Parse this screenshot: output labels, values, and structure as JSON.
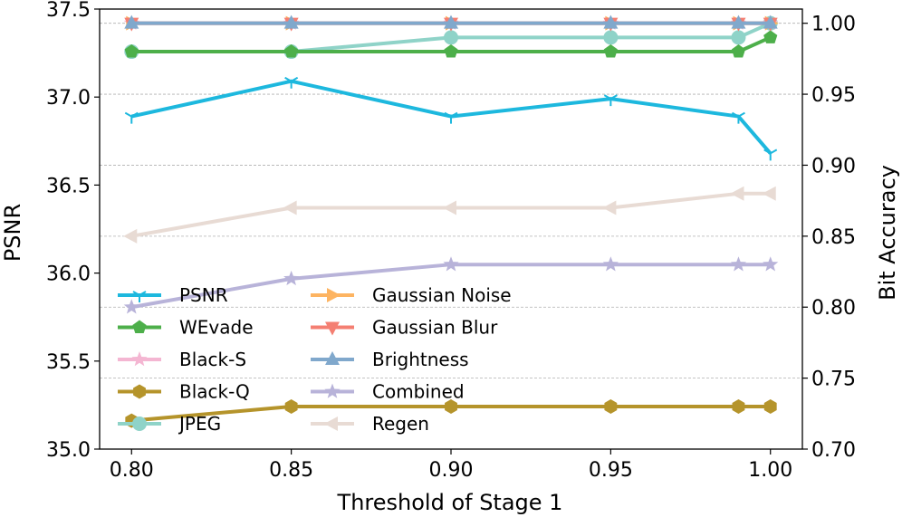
{
  "chart_data": {
    "type": "line",
    "xlabel": "Threshold of Stage 1",
    "ylabel_left": "PSNR",
    "ylabel_right": "Bit Accuracy",
    "x": [
      0.8,
      0.85,
      0.9,
      0.95,
      0.99,
      1.0
    ],
    "xticks": [
      "0.80",
      "0.85",
      "0.90",
      "0.95",
      "1.00"
    ],
    "xlim": [
      0.79,
      1.01
    ],
    "ylim_left": [
      35.0,
      37.5
    ],
    "yticks_left": [
      "35.0",
      "35.5",
      "36.0",
      "36.5",
      "37.0",
      "37.5"
    ],
    "ylim_right": [
      0.7,
      1.01
    ],
    "yticks_right": [
      "0.70",
      "0.75",
      "0.80",
      "0.85",
      "0.90",
      "0.95",
      "1.00"
    ],
    "grid": "horizontal dashed at right-axis ticks",
    "legend_position": "lower-left",
    "series": [
      {
        "name": "PSNR",
        "axis": "left",
        "color": "#1db8de",
        "marker": "tri_down",
        "values": [
          36.89,
          37.09,
          36.89,
          36.99,
          36.89,
          36.68
        ]
      },
      {
        "name": "WEvade",
        "axis": "right",
        "color": "#4daf4a",
        "marker": "pentagon",
        "values": [
          0.98,
          0.98,
          0.98,
          0.98,
          0.98,
          0.99
        ]
      },
      {
        "name": "Black-S",
        "axis": "right",
        "color": "#f4b6d2",
        "marker": "star",
        "values": [
          1.0,
          1.0,
          1.0,
          1.0,
          1.0,
          1.0
        ]
      },
      {
        "name": "Black-Q",
        "axis": "right",
        "color": "#b5942b",
        "marker": "hexagon",
        "values": [
          0.72,
          0.73,
          0.73,
          0.73,
          0.73,
          0.73
        ]
      },
      {
        "name": "JPEG",
        "axis": "right",
        "color": "#8fd3c8",
        "marker": "circle",
        "values": [
          0.98,
          0.98,
          0.99,
          0.99,
          0.99,
          1.0
        ]
      },
      {
        "name": "Gaussian Noise",
        "axis": "right",
        "color": "#fdb462",
        "marker": "tri_right",
        "values": [
          1.0,
          1.0,
          1.0,
          1.0,
          1.0,
          1.0
        ]
      },
      {
        "name": "Gaussian Blur",
        "axis": "right",
        "color": "#f47f72",
        "marker": "tri_down_filled",
        "values": [
          1.0,
          1.0,
          1.0,
          1.0,
          1.0,
          1.0
        ]
      },
      {
        "name": "Brightness",
        "axis": "right",
        "color": "#80a8cc",
        "marker": "tri_up_filled",
        "values": [
          1.0,
          1.0,
          1.0,
          1.0,
          1.0,
          1.0
        ]
      },
      {
        "name": "Combined",
        "axis": "right",
        "color": "#b8b3d9",
        "marker": "star",
        "values": [
          0.8,
          0.82,
          0.83,
          0.83,
          0.83,
          0.83
        ]
      },
      {
        "name": "Regen",
        "axis": "right",
        "color": "#e8dbd4",
        "marker": "tri_left",
        "values": [
          0.85,
          0.87,
          0.87,
          0.87,
          0.88,
          0.88
        ]
      }
    ],
    "draw_order": [
      "Regen",
      "Combined",
      "Black-Q",
      "JPEG",
      "WEvade",
      "Black-S",
      "Gaussian Noise",
      "Gaussian Blur",
      "Brightness",
      "PSNR"
    ],
    "legend_columns": [
      [
        "PSNR",
        "WEvade",
        "Black-S",
        "Black-Q",
        "JPEG"
      ],
      [
        "Gaussian Noise",
        "Gaussian Blur",
        "Brightness",
        "Combined",
        "Regen"
      ]
    ]
  }
}
